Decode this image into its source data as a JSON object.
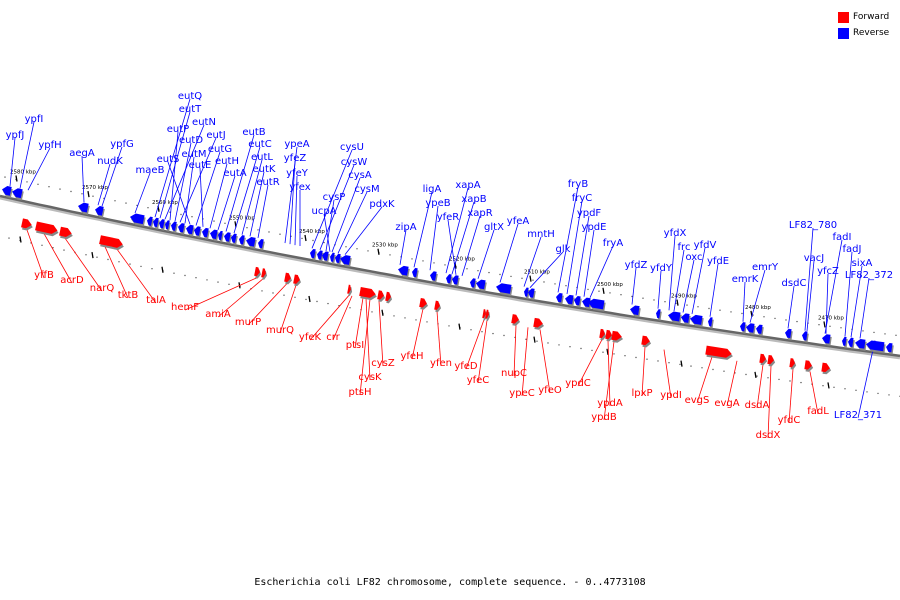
{
  "legend": [
    {
      "label": "Forward",
      "color": "#ff0000"
    },
    {
      "label": "Reverse",
      "color": "#0000ff"
    }
  ],
  "caption": "Escherichia coli LF82 chromosome, complete sequence. - 0..4773108",
  "colors": {
    "forward": "#ff0000",
    "reverse": "#0000ff",
    "backbone": "#666666"
  },
  "tick_labels": [
    "2580 kbp",
    "2570 kbp",
    "2560 kbp",
    "2550 kbp",
    "2540 kbp",
    "2530 kbp",
    "2520 kbp",
    "2510 kbp",
    "2500 kbp",
    "2490 kbp",
    "2480 kbp",
    "2470 kbp"
  ],
  "reverse_labels": [
    "ypfI",
    "ypfJ",
    "ypfH",
    "aegA",
    "nudK",
    "ypfG",
    "maeB",
    "eutQ",
    "eutT",
    "eutN",
    "eutP",
    "eutD",
    "eutJ",
    "eutM",
    "eutS",
    "eutG",
    "eutE",
    "eutH",
    "eutA",
    "eutB",
    "eutC",
    "eutL",
    "eutK",
    "eutR",
    "ypeA",
    "yfeZ",
    "yfeY",
    "yfex",
    "cysU",
    "cysW",
    "cysP",
    "cysA",
    "ucpA",
    "cysM",
    "pdxK",
    "zipA",
    "ligA",
    "ypeB",
    "xapA",
    "xapB",
    "yfeR",
    "xapR",
    "gltX",
    "yfeA",
    "mntH",
    "glk",
    "fryB",
    "fryC",
    "ypdF",
    "ypdE",
    "fryA",
    "yfdZ",
    "yfdY",
    "yfdX",
    "frc",
    "oxc",
    "yfdV",
    "yfdE",
    "emrK",
    "emrY",
    "dsdC",
    "LF82_780",
    "vacJ",
    "fadI",
    "yfcZ",
    "fadJ",
    "sixA",
    "LF82_372",
    "LF82_371"
  ],
  "forward_labels": [
    "yffB",
    "acrD",
    "narQ",
    "tktB",
    "talA",
    "hemF",
    "amiA",
    "murP",
    "murQ",
    "yfeK",
    "crr",
    "ptsI",
    "cysZ",
    "cysK",
    "ptsH",
    "yfeH",
    "yfen",
    "yfeD",
    "yfeC",
    "nupC",
    "ypeC",
    "yfeO",
    "ypdC",
    "ypdA",
    "ypdB",
    "lpxP",
    "ypdI",
    "evgS",
    "evgA",
    "dsdA",
    "dsdX",
    "yfdC",
    "fadL"
  ]
}
